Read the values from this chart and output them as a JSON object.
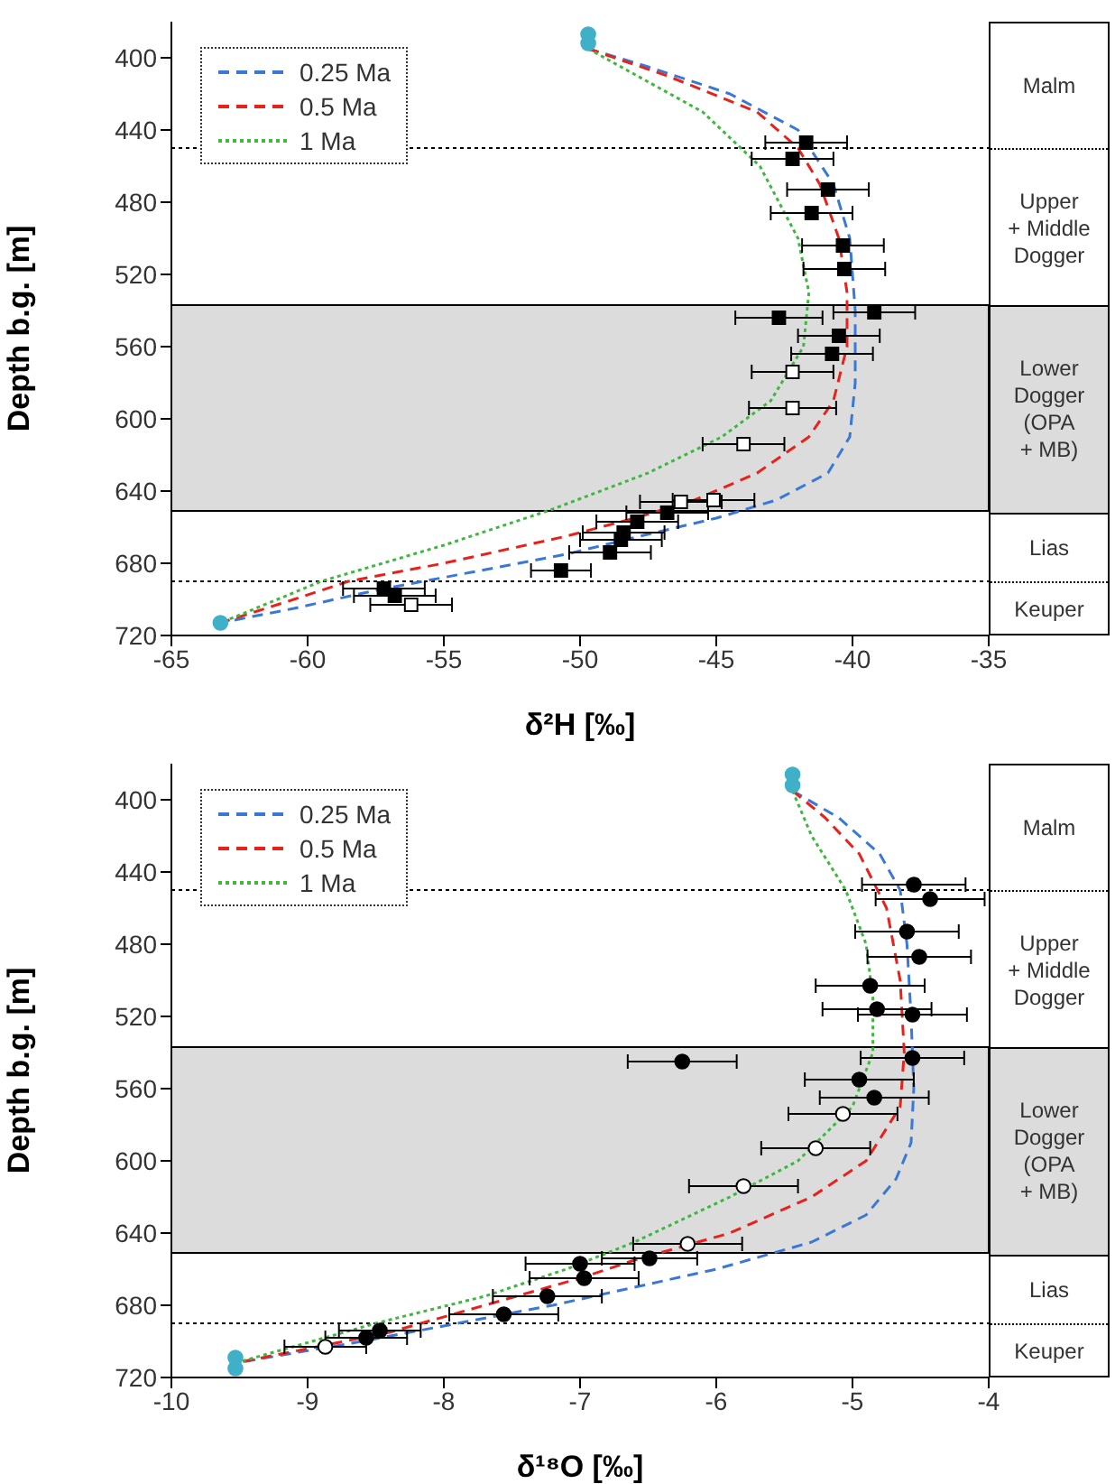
{
  "chart_data": [
    {
      "type": "line",
      "xlabel": "δ²H [‰]",
      "ylabel": "Depth b.g. [m]",
      "xlim": [
        -65,
        -35
      ],
      "xticks": [
        -65,
        -60,
        -55,
        -50,
        -45,
        -40,
        -35
      ],
      "ylim": [
        720,
        380
      ],
      "yticks": [
        400,
        440,
        480,
        520,
        560,
        600,
        640,
        680,
        720
      ],
      "grid": false,
      "legend": "top left",
      "series": [
        {
          "type": "line",
          "name": "0.25 Ma",
          "color": "#3a78d8",
          "line_style": "dashed",
          "marker": "none",
          "x": [
            -49.7,
            -47.5,
            -44.5,
            -42.0,
            -40.7,
            -40.1,
            -39.9,
            -39.9,
            -40.1,
            -40.9,
            -42.8,
            -45.0,
            -47.8,
            -50.5,
            -54.0,
            -57.5,
            -60.5,
            -63.2
          ],
          "values": [
            395,
            405,
            420,
            440,
            470,
            500,
            540,
            580,
            610,
            630,
            645,
            655,
            665,
            675,
            685,
            695,
            705,
            713
          ]
        },
        {
          "type": "line",
          "name": "0.5 Ma",
          "color": "#e8221a",
          "line_style": "dashed",
          "marker": "none",
          "x": [
            -49.7,
            -46.8,
            -43.5,
            -42.0,
            -41.2,
            -40.5,
            -40.2,
            -40.2,
            -40.7,
            -41.6,
            -43.5,
            -45.8,
            -48.0,
            -50.5,
            -55.0,
            -58.5,
            -60.5,
            -63.2
          ],
          "values": [
            395,
            410,
            430,
            450,
            470,
            500,
            530,
            560,
            590,
            610,
            630,
            645,
            655,
            665,
            680,
            690,
            700,
            713
          ]
        },
        {
          "type": "line",
          "name": "1 Ma",
          "color": "#3cb83c",
          "line_style": "dotted",
          "marker": "none",
          "x": [
            -49.7,
            -47.9,
            -45.5,
            -43.4,
            -42.0,
            -41.6,
            -41.8,
            -43.0,
            -44.8,
            -47.5,
            -51.0,
            -55.0,
            -59.5,
            -63.2
          ],
          "values": [
            395,
            410,
            430,
            460,
            500,
            530,
            560,
            590,
            610,
            630,
            650,
            670,
            690,
            713
          ]
        },
        {
          "type": "scatter",
          "color": "#000000",
          "marker": "square",
          "x": [
            -41.7,
            -42.2,
            -40.9,
            -41.5,
            -40.35,
            -40.3,
            -39.2,
            -42.7,
            -40.5,
            -40.75,
            -46.8,
            -47.9,
            -48.4,
            -48.5,
            -48.9,
            -50.7,
            -57.2,
            -56.8
          ],
          "values": [
            447,
            456,
            473,
            486,
            504,
            517,
            541,
            544,
            554,
            564,
            652,
            657,
            663,
            667,
            674,
            684,
            694,
            698
          ],
          "xerrors": [
            1.5,
            1.5,
            1.5,
            1.5,
            1.5,
            1.5,
            1.5,
            1.6,
            1.5,
            1.5,
            1.5,
            1.5,
            1.5,
            1.5,
            1.5,
            1.1,
            1.5,
            1.5
          ]
        },
        {
          "type": "scatter",
          "color": "#ffffff",
          "marker": "square",
          "x": [
            -42.2,
            -42.2,
            -44.0,
            -46.3,
            -45.1,
            -56.2
          ],
          "values": [
            574,
            594,
            614,
            646,
            645,
            703
          ],
          "xerrors": [
            1.5,
            1.6,
            1.5,
            1.5,
            1.5,
            1.5
          ]
        },
        {
          "type": "scatter",
          "color": "#3fb0c8",
          "marker": "circle",
          "x": [
            -49.7,
            -49.7,
            -63.2
          ],
          "values": [
            387,
            392,
            713
          ]
        }
      ],
      "ref_lines": [
        {
          "axis": "y",
          "value": 450,
          "line_style": "dotted"
        },
        {
          "axis": "y",
          "value": 690,
          "line_style": "dotted"
        }
      ],
      "bands": [
        {
          "axis": "y",
          "from": 537,
          "to": 651,
          "color": "#dcdcdc"
        }
      ],
      "annotations": [
        "Malm",
        "Upper\n+ Middle\nDogger",
        "Lower\nDogger\n(OPA\n+ MB)",
        "Lias",
        "Keuper"
      ]
    },
    {
      "type": "line",
      "xlabel": "δ¹⁸O [‰]",
      "ylabel": "Depth b.g. [m]",
      "xlim": [
        -10,
        -4
      ],
      "xticks": [
        -10,
        -9,
        -8,
        -7,
        -6,
        -5,
        -4
      ],
      "ylim": [
        720,
        380
      ],
      "yticks": [
        400,
        440,
        480,
        520,
        560,
        600,
        640,
        680,
        720
      ],
      "grid": false,
      "legend": "top left",
      "series": [
        {
          "type": "line",
          "name": "0.25 Ma",
          "color": "#3a78d8",
          "line_style": "dashed",
          "marker": "none",
          "x": [
            -5.44,
            -5.1,
            -4.8,
            -4.65,
            -4.6,
            -4.57,
            -4.55,
            -4.57,
            -4.68,
            -4.9,
            -5.3,
            -6.0,
            -6.6,
            -7.2,
            -7.9,
            -8.6,
            -9.53
          ],
          "values": [
            395,
            410,
            430,
            450,
            480,
            520,
            560,
            590,
            610,
            630,
            645,
            660,
            670,
            680,
            690,
            700,
            712
          ]
        },
        {
          "type": "line",
          "name": "0.5 Ma",
          "color": "#e8221a",
          "line_style": "dashed",
          "marker": "none",
          "x": [
            -5.44,
            -5.2,
            -4.95,
            -4.75,
            -4.65,
            -4.62,
            -4.65,
            -4.9,
            -5.3,
            -5.9,
            -6.6,
            -7.0,
            -7.7,
            -8.4,
            -9.53
          ],
          "values": [
            395,
            410,
            430,
            460,
            500,
            540,
            570,
            600,
            620,
            640,
            655,
            665,
            680,
            695,
            712
          ]
        },
        {
          "type": "line",
          "name": "1 Ma",
          "color": "#3cb83c",
          "line_style": "dotted",
          "marker": "none",
          "x": [
            -5.44,
            -5.3,
            -5.05,
            -4.9,
            -4.85,
            -4.85,
            -5.0,
            -5.4,
            -5.9,
            -6.6,
            -7.1,
            -7.7,
            -8.5,
            -9.53
          ],
          "values": [
            395,
            420,
            450,
            480,
            510,
            540,
            570,
            600,
            620,
            645,
            660,
            675,
            690,
            712
          ]
        },
        {
          "type": "scatter",
          "color": "#000000",
          "marker": "circle",
          "x": [
            -4.55,
            -4.43,
            -4.6,
            -4.51,
            -4.87,
            -4.82,
            -4.56,
            -4.56,
            -6.25,
            -4.95,
            -4.84,
            -6.49,
            -7.0,
            -6.97,
            -7.24,
            -7.56,
            -8.47,
            -8.57
          ],
          "values": [
            447,
            455,
            473,
            487,
            503,
            516,
            519,
            543,
            545,
            555,
            565,
            654,
            657,
            665,
            675,
            685,
            694,
            698
          ],
          "xerrors": [
            0.38,
            0.4,
            0.38,
            0.38,
            0.4,
            0.4,
            0.4,
            0.38,
            0.4,
            0.4,
            0.4,
            0.35,
            0.4,
            0.4,
            0.4,
            0.4,
            0.3,
            0.3
          ]
        },
        {
          "type": "scatter",
          "color": "#ffffff",
          "marker": "circle",
          "x": [
            -5.07,
            -5.27,
            -5.8,
            -6.21,
            -8.87
          ],
          "values": [
            574,
            593,
            614,
            646,
            703
          ],
          "xerrors": [
            0.4,
            0.4,
            0.4,
            0.4,
            0.3
          ]
        },
        {
          "type": "scatter",
          "color": "#3fb0c8",
          "marker": "circle",
          "x": [
            -5.44,
            -5.44,
            -9.53,
            -9.53
          ],
          "values": [
            386,
            392,
            709,
            715
          ]
        }
      ],
      "ref_lines": [
        {
          "axis": "y",
          "value": 450,
          "line_style": "dotted"
        },
        {
          "axis": "y",
          "value": 690,
          "line_style": "dotted"
        }
      ],
      "bands": [
        {
          "axis": "y",
          "from": 537,
          "to": 651,
          "color": "#dcdcdc"
        }
      ],
      "annotations": [
        "Malm",
        "Upper\n+ Middle\nDogger",
        "Lower\nDogger\n(OPA\n+ MB)",
        "Lias",
        "Keuper"
      ]
    }
  ]
}
